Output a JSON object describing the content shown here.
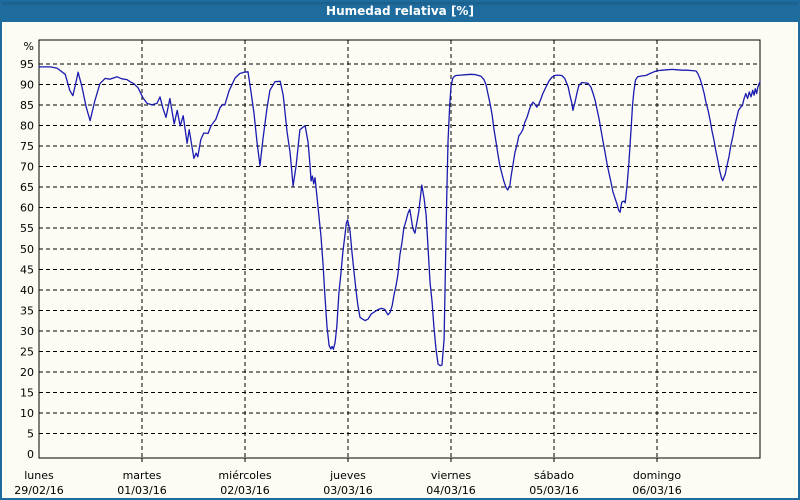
{
  "window": {
    "title": "Humedad relativa [%]"
  },
  "colors": {
    "titlebar_bg": "#1E6C9E",
    "window_border": "#1E6C9E",
    "chart_background": "#FCFCF4",
    "grid": "#000000",
    "text": "#000000",
    "series_line": "#1B1BB0"
  },
  "chart_data": {
    "type": "line",
    "title": "Humedad relativa [%]",
    "ylabel": "%",
    "xlabel": "",
    "grid": "dashed",
    "legend": "none",
    "ylim": [
      0,
      101
    ],
    "y_ticks": [
      0,
      5,
      10,
      15,
      20,
      25,
      30,
      35,
      40,
      45,
      50,
      55,
      60,
      65,
      70,
      75,
      80,
      85,
      90,
      95
    ],
    "x_total_hours": 168,
    "x_days": [
      {
        "name": "lunes",
        "date": "29/02/16"
      },
      {
        "name": "martes",
        "date": "01/03/16"
      },
      {
        "name": "miércoles",
        "date": "02/03/16"
      },
      {
        "name": "jueves",
        "date": "03/03/16"
      },
      {
        "name": "viernes",
        "date": "04/03/16"
      },
      {
        "name": "sábado",
        "date": "05/03/16"
      },
      {
        "name": "domingo",
        "date": "06/03/16"
      }
    ],
    "series": [
      {
        "name": "Humedad relativa",
        "color": "#1B1BB0",
        "points": [
          [
            0,
            94.3
          ],
          [
            2.6,
            94.3
          ],
          [
            4.2,
            94.0
          ],
          [
            6.1,
            92.5
          ],
          [
            7.2,
            88.5
          ],
          [
            7.9,
            87.3
          ],
          [
            8.6,
            90.5
          ],
          [
            9.1,
            93.0
          ],
          [
            10.0,
            89.5
          ],
          [
            11.0,
            84.5
          ],
          [
            11.9,
            81.2
          ],
          [
            13.0,
            86.0
          ],
          [
            14.2,
            90.2
          ],
          [
            15.4,
            91.5
          ],
          [
            16.5,
            91.3
          ],
          [
            18.2,
            91.9
          ],
          [
            19.3,
            91.4
          ],
          [
            20.5,
            91.2
          ],
          [
            21.2,
            90.7
          ],
          [
            22.1,
            90.2
          ],
          [
            23.1,
            89.2
          ],
          [
            24.2,
            86.8
          ],
          [
            25.2,
            85.4
          ],
          [
            26.3,
            85.1
          ],
          [
            27.5,
            85.4
          ],
          [
            28.2,
            87.0
          ],
          [
            28.9,
            84.2
          ],
          [
            29.6,
            82.0
          ],
          [
            30.5,
            86.6
          ],
          [
            31.5,
            80.4
          ],
          [
            32.2,
            83.7
          ],
          [
            32.9,
            79.9
          ],
          [
            33.6,
            82.4
          ],
          [
            34.5,
            75.7
          ],
          [
            35.0,
            79.0
          ],
          [
            36.1,
            72.0
          ],
          [
            36.6,
            73.3
          ],
          [
            37.0,
            72.4
          ],
          [
            37.7,
            76.6
          ],
          [
            38.4,
            78.2
          ],
          [
            39.4,
            78.1
          ],
          [
            40.1,
            80.0
          ],
          [
            41.2,
            81.5
          ],
          [
            42.2,
            84.4
          ],
          [
            42.9,
            85.2
          ],
          [
            43.3,
            85.0
          ],
          [
            44.3,
            88.5
          ],
          [
            45.7,
            91.6
          ],
          [
            46.8,
            92.7
          ],
          [
            47.8,
            93.0
          ],
          [
            48.7,
            93.1
          ],
          [
            49.4,
            88.2
          ],
          [
            50.1,
            83.0
          ],
          [
            50.8,
            76.0
          ],
          [
            51.5,
            70.2
          ],
          [
            52.2,
            76.8
          ],
          [
            53.1,
            84.1
          ],
          [
            53.8,
            88.6
          ],
          [
            55.0,
            90.7
          ],
          [
            56.2,
            90.8
          ],
          [
            56.9,
            87.4
          ],
          [
            57.8,
            78.4
          ],
          [
            58.5,
            73.4
          ],
          [
            59.2,
            65.3
          ],
          [
            59.9,
            70.2
          ],
          [
            60.8,
            79.0
          ],
          [
            62.0,
            80.0
          ],
          [
            62.7,
            75.9
          ],
          [
            63.1,
            71.0
          ],
          [
            63.4,
            66.5
          ],
          [
            63.7,
            67.7
          ],
          [
            64.0,
            65.8
          ],
          [
            64.3,
            67.3
          ],
          [
            64.8,
            62.4
          ],
          [
            65.2,
            58.3
          ],
          [
            65.7,
            53.0
          ],
          [
            66.2,
            46.0
          ],
          [
            66.6,
            39.0
          ],
          [
            67.1,
            31.0
          ],
          [
            67.6,
            26.4
          ],
          [
            68.0,
            25.6
          ],
          [
            68.3,
            26.2
          ],
          [
            68.6,
            25.5
          ],
          [
            69.0,
            27.2
          ],
          [
            69.4,
            31.0
          ],
          [
            69.9,
            39.5
          ],
          [
            70.4,
            44.4
          ],
          [
            70.8,
            49.3
          ],
          [
            71.3,
            53.4
          ],
          [
            71.6,
            56.2
          ],
          [
            71.9,
            57.0
          ],
          [
            72.5,
            54.2
          ],
          [
            72.9,
            49.3
          ],
          [
            73.4,
            44.4
          ],
          [
            73.9,
            39.5
          ],
          [
            74.3,
            36.2
          ],
          [
            74.8,
            33.3
          ],
          [
            75.3,
            32.9
          ],
          [
            76.0,
            32.5
          ],
          [
            76.7,
            32.9
          ],
          [
            77.4,
            34.1
          ],
          [
            78.3,
            34.7
          ],
          [
            79.0,
            35.2
          ],
          [
            79.9,
            35.5
          ],
          [
            80.6,
            35.2
          ],
          [
            81.3,
            33.9
          ],
          [
            81.8,
            34.5
          ],
          [
            82.3,
            36.2
          ],
          [
            82.7,
            38.6
          ],
          [
            83.2,
            41.1
          ],
          [
            83.6,
            43.5
          ],
          [
            84.1,
            48.5
          ],
          [
            84.6,
            51.7
          ],
          [
            85.0,
            55.0
          ],
          [
            85.5,
            56.7
          ],
          [
            86.0,
            58.7
          ],
          [
            86.4,
            59.6
          ],
          [
            87.1,
            55.0
          ],
          [
            87.6,
            53.8
          ],
          [
            88.1,
            56.7
          ],
          [
            88.5,
            59.1
          ],
          [
            89.2,
            65.5
          ],
          [
            89.7,
            62.4
          ],
          [
            90.2,
            58.3
          ],
          [
            90.6,
            51.3
          ],
          [
            91.1,
            41.9
          ],
          [
            91.6,
            37.0
          ],
          [
            92.0,
            31.3
          ],
          [
            92.5,
            25.5
          ],
          [
            93.0,
            21.9
          ],
          [
            93.5,
            21.5
          ],
          [
            93.9,
            21.7
          ],
          [
            94.4,
            28.0
          ],
          [
            94.7,
            45.0
          ],
          [
            95.0,
            62.0
          ],
          [
            95.3,
            76.0
          ],
          [
            95.7,
            85.0
          ],
          [
            96.0,
            89.5
          ],
          [
            96.4,
            91.5
          ],
          [
            96.8,
            92.0
          ],
          [
            97.2,
            92.2
          ],
          [
            98.3,
            92.3
          ],
          [
            99.5,
            92.4
          ],
          [
            100.7,
            92.5
          ],
          [
            101.8,
            92.4
          ],
          [
            103.0,
            92.0
          ],
          [
            103.7,
            91.2
          ],
          [
            104.2,
            89.8
          ],
          [
            104.6,
            87.8
          ],
          [
            105.1,
            85.3
          ],
          [
            105.6,
            82.5
          ],
          [
            106.0,
            79.2
          ],
          [
            106.5,
            75.9
          ],
          [
            107.0,
            72.6
          ],
          [
            107.4,
            70.2
          ],
          [
            107.9,
            68.1
          ],
          [
            108.3,
            66.5
          ],
          [
            108.8,
            65.0
          ],
          [
            109.2,
            64.3
          ],
          [
            109.7,
            65.3
          ],
          [
            110.0,
            67.7
          ],
          [
            110.4,
            70.2
          ],
          [
            110.9,
            73.4
          ],
          [
            111.4,
            75.5
          ],
          [
            111.8,
            77.5
          ],
          [
            112.3,
            78.2
          ],
          [
            112.8,
            79.2
          ],
          [
            113.2,
            80.8
          ],
          [
            113.7,
            82.0
          ],
          [
            114.2,
            83.7
          ],
          [
            114.6,
            84.9
          ],
          [
            115.1,
            85.7
          ],
          [
            115.5,
            85.3
          ],
          [
            116.0,
            84.5
          ],
          [
            116.5,
            85.3
          ],
          [
            117.0,
            86.6
          ],
          [
            117.4,
            87.8
          ],
          [
            118.1,
            89.3
          ],
          [
            118.8,
            90.8
          ],
          [
            119.5,
            91.8
          ],
          [
            120.2,
            92.2
          ],
          [
            120.9,
            92.3
          ],
          [
            121.8,
            92.2
          ],
          [
            122.5,
            91.5
          ],
          [
            123.3,
            89.4
          ],
          [
            123.7,
            87.4
          ],
          [
            124.2,
            85.3
          ],
          [
            124.4,
            83.7
          ],
          [
            124.9,
            85.7
          ],
          [
            125.4,
            88.2
          ],
          [
            125.8,
            89.8
          ],
          [
            126.5,
            90.5
          ],
          [
            127.2,
            90.4
          ],
          [
            127.9,
            90.3
          ],
          [
            128.6,
            89.4
          ],
          [
            129.1,
            87.8
          ],
          [
            129.6,
            86.1
          ],
          [
            130.0,
            84.1
          ],
          [
            130.5,
            81.6
          ],
          [
            130.9,
            79.2
          ],
          [
            131.4,
            76.3
          ],
          [
            131.9,
            73.4
          ],
          [
            132.3,
            71.0
          ],
          [
            132.8,
            68.5
          ],
          [
            133.3,
            66.1
          ],
          [
            133.7,
            64.0
          ],
          [
            134.2,
            62.4
          ],
          [
            134.7,
            60.8
          ],
          [
            135.1,
            59.3
          ],
          [
            135.4,
            58.9
          ],
          [
            135.8,
            61.4
          ],
          [
            136.3,
            61.6
          ],
          [
            136.6,
            61.2
          ],
          [
            137.0,
            65.3
          ],
          [
            137.4,
            70.2
          ],
          [
            137.7,
            75.1
          ],
          [
            138.0,
            80.0
          ],
          [
            138.3,
            84.9
          ],
          [
            138.6,
            88.2
          ],
          [
            139.0,
            91.1
          ],
          [
            139.5,
            91.9
          ],
          [
            140.5,
            92.1
          ],
          [
            141.4,
            92.2
          ],
          [
            142.4,
            92.7
          ],
          [
            143.3,
            93.1
          ],
          [
            144.2,
            93.4
          ],
          [
            145.2,
            93.5
          ],
          [
            146.3,
            93.6
          ],
          [
            147.5,
            93.7
          ],
          [
            148.7,
            93.6
          ],
          [
            149.8,
            93.5
          ],
          [
            151.0,
            93.5
          ],
          [
            152.2,
            93.4
          ],
          [
            153.1,
            93.3
          ],
          [
            153.5,
            92.7
          ],
          [
            154.0,
            91.5
          ],
          [
            154.5,
            89.8
          ],
          [
            155.0,
            87.8
          ],
          [
            155.4,
            85.7
          ],
          [
            155.9,
            83.7
          ],
          [
            156.4,
            81.2
          ],
          [
            156.8,
            78.8
          ],
          [
            157.3,
            76.3
          ],
          [
            157.7,
            73.9
          ],
          [
            158.2,
            71.4
          ],
          [
            158.6,
            69.0
          ],
          [
            159.0,
            67.3
          ],
          [
            159.3,
            66.6
          ],
          [
            159.9,
            68.1
          ],
          [
            160.3,
            70.2
          ],
          [
            160.8,
            72.6
          ],
          [
            161.2,
            75.1
          ],
          [
            161.7,
            77.5
          ],
          [
            162.1,
            80.0
          ],
          [
            162.6,
            82.0
          ],
          [
            163.0,
            83.7
          ],
          [
            163.5,
            84.5
          ],
          [
            163.9,
            84.9
          ],
          [
            164.3,
            86.6
          ],
          [
            164.7,
            87.8
          ],
          [
            165.1,
            86.6
          ],
          [
            165.5,
            88.2
          ],
          [
            165.9,
            87.0
          ],
          [
            166.3,
            88.6
          ],
          [
            166.6,
            87.4
          ],
          [
            166.9,
            89.0
          ],
          [
            167.2,
            87.8
          ],
          [
            167.5,
            89.4
          ],
          [
            167.8,
            90.2
          ],
          [
            168.0,
            90.6
          ]
        ]
      }
    ]
  }
}
